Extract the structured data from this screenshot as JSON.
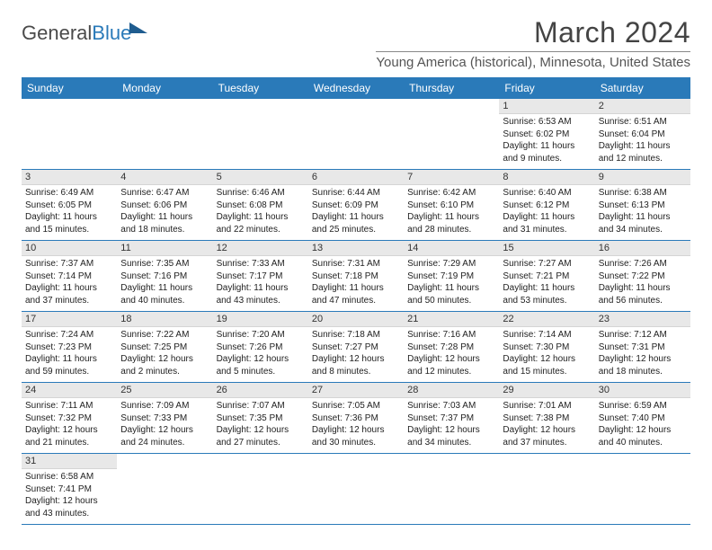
{
  "logo": {
    "part1": "General",
    "part2": "Blue"
  },
  "title": "March 2024",
  "subtitle": "Young America (historical), Minnesota, United States",
  "colors": {
    "headerBg": "#2a7ab9",
    "headerText": "#ffffff",
    "dayNumBg": "#e8e8e8",
    "rowBorder": "#2a7ab9",
    "pageBg": "#ffffff",
    "textColor": "#333333"
  },
  "layout": {
    "columns": 7,
    "rows": 6,
    "cellFontSize": 10,
    "headerFontSize": 12,
    "titleFontSize": 32,
    "subtitleFontSize": 15
  },
  "dayNames": [
    "Sunday",
    "Monday",
    "Tuesday",
    "Wednesday",
    "Thursday",
    "Friday",
    "Saturday"
  ],
  "weeks": [
    [
      null,
      null,
      null,
      null,
      null,
      {
        "d": "1",
        "sr": "6:53 AM",
        "ss": "6:02 PM",
        "dl": "11 hours and 9 minutes."
      },
      {
        "d": "2",
        "sr": "6:51 AM",
        "ss": "6:04 PM",
        "dl": "11 hours and 12 minutes."
      }
    ],
    [
      {
        "d": "3",
        "sr": "6:49 AM",
        "ss": "6:05 PM",
        "dl": "11 hours and 15 minutes."
      },
      {
        "d": "4",
        "sr": "6:47 AM",
        "ss": "6:06 PM",
        "dl": "11 hours and 18 minutes."
      },
      {
        "d": "5",
        "sr": "6:46 AM",
        "ss": "6:08 PM",
        "dl": "11 hours and 22 minutes."
      },
      {
        "d": "6",
        "sr": "6:44 AM",
        "ss": "6:09 PM",
        "dl": "11 hours and 25 minutes."
      },
      {
        "d": "7",
        "sr": "6:42 AM",
        "ss": "6:10 PM",
        "dl": "11 hours and 28 minutes."
      },
      {
        "d": "8",
        "sr": "6:40 AM",
        "ss": "6:12 PM",
        "dl": "11 hours and 31 minutes."
      },
      {
        "d": "9",
        "sr": "6:38 AM",
        "ss": "6:13 PM",
        "dl": "11 hours and 34 minutes."
      }
    ],
    [
      {
        "d": "10",
        "sr": "7:37 AM",
        "ss": "7:14 PM",
        "dl": "11 hours and 37 minutes."
      },
      {
        "d": "11",
        "sr": "7:35 AM",
        "ss": "7:16 PM",
        "dl": "11 hours and 40 minutes."
      },
      {
        "d": "12",
        "sr": "7:33 AM",
        "ss": "7:17 PM",
        "dl": "11 hours and 43 minutes."
      },
      {
        "d": "13",
        "sr": "7:31 AM",
        "ss": "7:18 PM",
        "dl": "11 hours and 47 minutes."
      },
      {
        "d": "14",
        "sr": "7:29 AM",
        "ss": "7:19 PM",
        "dl": "11 hours and 50 minutes."
      },
      {
        "d": "15",
        "sr": "7:27 AM",
        "ss": "7:21 PM",
        "dl": "11 hours and 53 minutes."
      },
      {
        "d": "16",
        "sr": "7:26 AM",
        "ss": "7:22 PM",
        "dl": "11 hours and 56 minutes."
      }
    ],
    [
      {
        "d": "17",
        "sr": "7:24 AM",
        "ss": "7:23 PM",
        "dl": "11 hours and 59 minutes."
      },
      {
        "d": "18",
        "sr": "7:22 AM",
        "ss": "7:25 PM",
        "dl": "12 hours and 2 minutes."
      },
      {
        "d": "19",
        "sr": "7:20 AM",
        "ss": "7:26 PM",
        "dl": "12 hours and 5 minutes."
      },
      {
        "d": "20",
        "sr": "7:18 AM",
        "ss": "7:27 PM",
        "dl": "12 hours and 8 minutes."
      },
      {
        "d": "21",
        "sr": "7:16 AM",
        "ss": "7:28 PM",
        "dl": "12 hours and 12 minutes."
      },
      {
        "d": "22",
        "sr": "7:14 AM",
        "ss": "7:30 PM",
        "dl": "12 hours and 15 minutes."
      },
      {
        "d": "23",
        "sr": "7:12 AM",
        "ss": "7:31 PM",
        "dl": "12 hours and 18 minutes."
      }
    ],
    [
      {
        "d": "24",
        "sr": "7:11 AM",
        "ss": "7:32 PM",
        "dl": "12 hours and 21 minutes."
      },
      {
        "d": "25",
        "sr": "7:09 AM",
        "ss": "7:33 PM",
        "dl": "12 hours and 24 minutes."
      },
      {
        "d": "26",
        "sr": "7:07 AM",
        "ss": "7:35 PM",
        "dl": "12 hours and 27 minutes."
      },
      {
        "d": "27",
        "sr": "7:05 AM",
        "ss": "7:36 PM",
        "dl": "12 hours and 30 minutes."
      },
      {
        "d": "28",
        "sr": "7:03 AM",
        "ss": "7:37 PM",
        "dl": "12 hours and 34 minutes."
      },
      {
        "d": "29",
        "sr": "7:01 AM",
        "ss": "7:38 PM",
        "dl": "12 hours and 37 minutes."
      },
      {
        "d": "30",
        "sr": "6:59 AM",
        "ss": "7:40 PM",
        "dl": "12 hours and 40 minutes."
      }
    ],
    [
      {
        "d": "31",
        "sr": "6:58 AM",
        "ss": "7:41 PM",
        "dl": "12 hours and 43 minutes."
      },
      null,
      null,
      null,
      null,
      null,
      null
    ]
  ],
  "labels": {
    "sunrise": "Sunrise: ",
    "sunset": "Sunset: ",
    "daylight": "Daylight: "
  }
}
